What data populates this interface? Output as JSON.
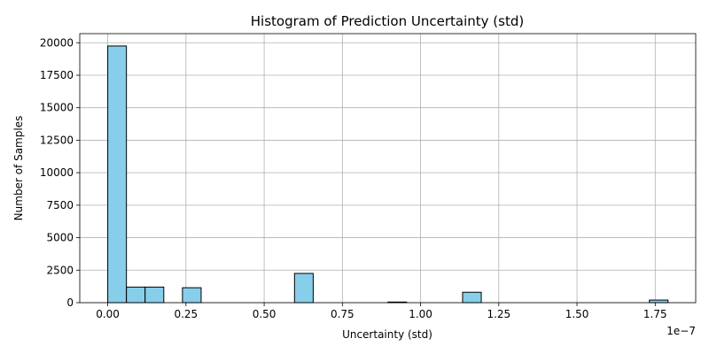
{
  "chart_data": {
    "type": "bar",
    "title": "Histogram of Prediction Uncertainty (std)",
    "xlabel": "Uncertainty (std)",
    "ylabel": "Number of Samples",
    "x_offset_label": "1e−7",
    "x_unit_scale": 1e-07,
    "xlim": [
      -0.0895,
      1.8795
    ],
    "ylim": [
      0,
      20700
    ],
    "grid": true,
    "bar_color": "#87ceeb",
    "bar_edge_color": "#000000",
    "bin_width": 0.0597,
    "x_ticks": [
      0.0,
      0.25,
      0.5,
      0.75,
      1.0,
      1.25,
      1.5,
      1.75
    ],
    "x_tick_labels": [
      "0.00",
      "0.25",
      "0.50",
      "0.75",
      "1.00",
      "1.25",
      "1.50",
      "1.75"
    ],
    "y_ticks": [
      0,
      2500,
      5000,
      7500,
      10000,
      12500,
      15000,
      17500,
      20000
    ],
    "y_tick_labels": [
      "0",
      "2500",
      "5000",
      "7500",
      "10000",
      "12500",
      "15000",
      "17500",
      "20000"
    ],
    "bins": [
      {
        "x0": 0.0,
        "x1": 0.0597,
        "count": 19750
      },
      {
        "x0": 0.0597,
        "x1": 0.1194,
        "count": 1200
      },
      {
        "x0": 0.1194,
        "x1": 0.1791,
        "count": 1200
      },
      {
        "x0": 0.2388,
        "x1": 0.2985,
        "count": 1150
      },
      {
        "x0": 0.597,
        "x1": 0.6567,
        "count": 2250
      },
      {
        "x0": 0.8955,
        "x1": 0.9552,
        "count": 50
      },
      {
        "x0": 1.1343,
        "x1": 1.194,
        "count": 800
      },
      {
        "x0": 1.7313,
        "x1": 1.791,
        "count": 200
      }
    ]
  }
}
